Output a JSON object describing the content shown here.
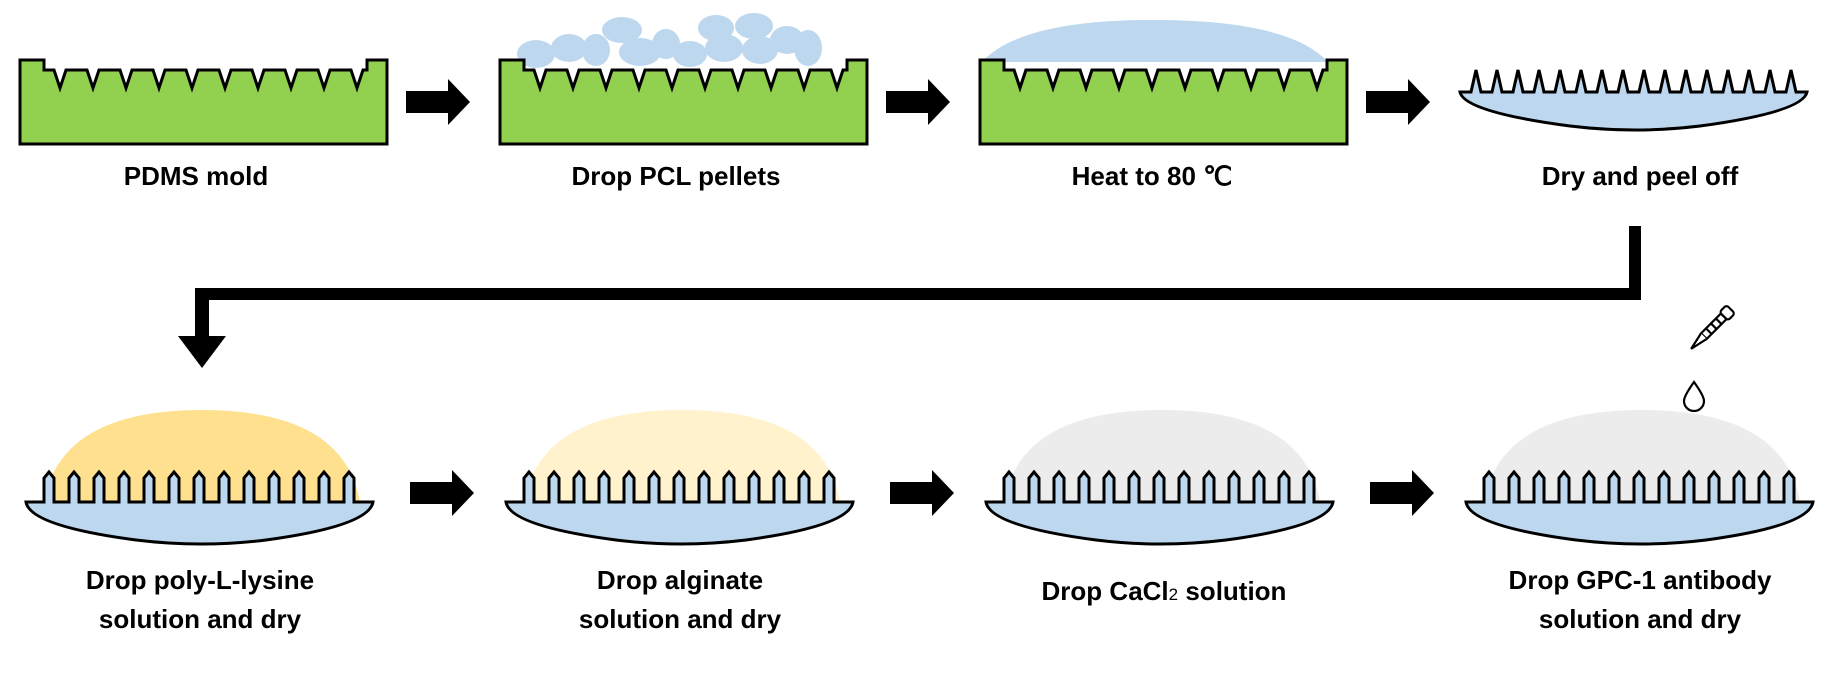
{
  "steps": [
    {
      "label": "PDMS mold"
    },
    {
      "label": "Drop PCL pellets"
    },
    {
      "label": "Heat to 80 ℃"
    },
    {
      "label": "Dry and peel off"
    },
    {
      "label_line1": "Drop poly-L-lysine",
      "label_line2": "solution and dry"
    },
    {
      "label_line1": "Drop alginate",
      "label_line2": "solution and dry"
    },
    {
      "label_main": "Drop CaCl",
      "label_sub": "2",
      "label_rest": " solution"
    },
    {
      "label_line1": "Drop GPC-1 antibody",
      "label_line2": "solution and dry"
    }
  ],
  "colors": {
    "pdms": "#92d050",
    "pcl": "#bdd7ee",
    "poly_l_lysine": "#ffe08e",
    "alginate": "#fff2cc",
    "cacl2": "#ececec",
    "antibody": "#ececec",
    "outline": "#000000"
  },
  "icons": [
    "dropper-icon",
    "droplet-icon"
  ]
}
